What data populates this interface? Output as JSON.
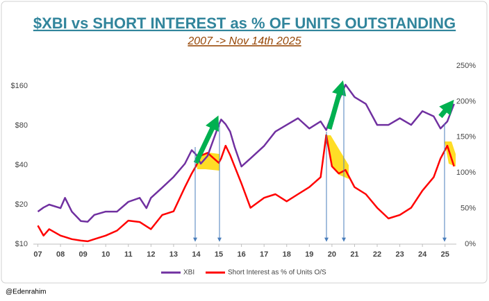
{
  "chart_data": {
    "type": "line",
    "title": "$XBI vs SHORT INTEREST as % OF UNITS OUTSTANDING",
    "subtitle": "2007 -> Nov 14th 2025",
    "handle": "@Edenrahim",
    "log": true,
    "x": [
      7,
      7.25,
      7.5,
      8,
      8.2,
      8.5,
      8.9,
      9.2,
      9.5,
      10,
      10.5,
      11,
      11.5,
      11.8,
      12,
      12.5,
      13,
      13.5,
      13.8,
      14,
      14.2,
      14.5,
      15,
      15.1,
      15.3,
      15.5,
      15.7,
      16,
      16.4,
      17,
      17.5,
      18,
      18.5,
      19,
      19.5,
      19.75,
      20,
      20.3,
      20.6,
      21,
      21.5,
      22,
      22.5,
      23,
      23.5,
      24,
      24.5,
      24.8,
      25.1,
      25.4
    ],
    "series": [
      {
        "name": "XBI",
        "color": "#7030a0",
        "values": [
          17.7,
          19,
          20,
          18.8,
          22.5,
          17.7,
          15,
          14.8,
          16.7,
          17.7,
          17.7,
          21,
          22.5,
          18.8,
          22.5,
          27,
          32.5,
          41,
          52,
          48,
          41,
          47,
          81,
          89,
          82,
          72,
          55,
          39,
          45,
          56,
          72,
          81,
          91,
          76,
          86,
          74,
          97,
          124,
          164,
          132,
          117,
          81,
          81,
          91,
          81,
          103,
          94,
          76,
          86,
          117
        ]
      },
      {
        "name": "Short Interest as % of Units O/S",
        "color": "#ff0000",
        "axis": "y2",
        "values": [
          26,
          12,
          21,
          12,
          10,
          7,
          5,
          4,
          7,
          12,
          19,
          33,
          31,
          25,
          21,
          41,
          46,
          80,
          99,
          110,
          124,
          128,
          114,
          120,
          138,
          125,
          109,
          85,
          51,
          65,
          70,
          60,
          70,
          80,
          94,
          153,
          109,
          99,
          104,
          80,
          70,
          51,
          36,
          41,
          51,
          75,
          94,
          120,
          138,
          109
        ]
      }
    ],
    "xlim": [
      6.8,
      25.5
    ],
    "xticks": [
      {
        "value": 7,
        "label": "07"
      },
      {
        "value": 8,
        "label": "08"
      },
      {
        "value": 9,
        "label": "09"
      },
      10,
      11,
      12,
      13,
      14,
      15,
      16,
      17,
      18,
      19,
      20,
      21,
      22,
      23,
      24,
      25
    ],
    "ylim": [
      10,
      228
    ],
    "yticks": [
      {
        "value": 10,
        "label": "$10"
      },
      {
        "value": 20,
        "label": "$20"
      },
      {
        "value": 40,
        "label": "$40"
      },
      {
        "value": 80,
        "label": "$80"
      },
      {
        "value": 160,
        "label": "$160"
      }
    ],
    "y2lim": [
      0,
      250
    ],
    "y2ticks": [
      {
        "value": 0,
        "label": "0%"
      },
      {
        "value": 50,
        "label": "50%"
      },
      {
        "value": 100,
        "label": "100%"
      },
      {
        "value": 150,
        "label": "150%"
      },
      {
        "value": 200,
        "label": "200%"
      },
      {
        "value": 250,
        "label": "250%"
      }
    ]
  }
}
